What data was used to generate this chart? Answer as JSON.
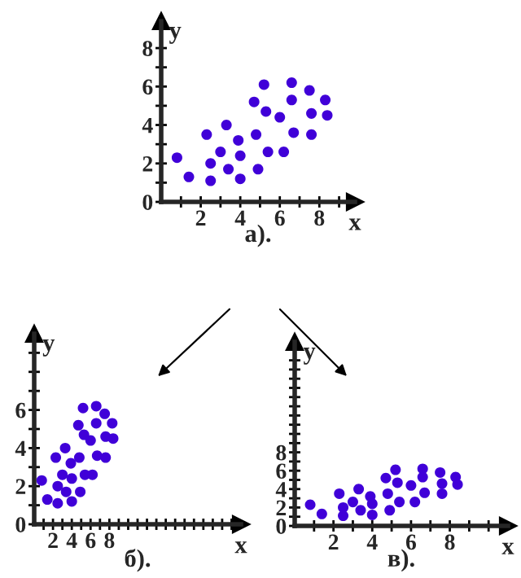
{
  "chart_data": [
    {
      "type": "scatter",
      "title": "а).",
      "xlabel": "x",
      "ylabel": "y",
      "color": "#4000d8",
      "marker": "circle",
      "grid": false,
      "x": [
        0.8,
        1.4,
        2.3,
        2.5,
        2.5,
        3.0,
        3.3,
        3.4,
        3.9,
        4.0,
        4.0,
        4.7,
        4.8,
        4.9,
        5.2,
        5.3,
        5.4,
        6.0,
        6.2,
        6.6,
        6.6,
        6.7,
        7.5,
        7.6,
        7.6,
        8.3,
        8.4
      ],
      "values": [
        2.3,
        1.3,
        3.5,
        2.0,
        1.1,
        2.6,
        4.0,
        1.7,
        3.2,
        2.4,
        1.2,
        5.2,
        3.5,
        1.7,
        6.1,
        4.7,
        2.6,
        4.4,
        2.6,
        6.2,
        5.3,
        3.6,
        5.8,
        4.6,
        3.5,
        5.3,
        4.5
      ],
      "xlim": [
        0,
        9.8
      ],
      "ylim": [
        0,
        9.4
      ],
      "xticks": [
        {
          "value": 1,
          "label": null
        },
        2,
        {
          "value": 3,
          "label": null
        },
        4,
        {
          "value": 5,
          "label": null
        },
        6,
        {
          "value": 7,
          "label": null
        },
        8,
        {
          "value": 9,
          "label": null
        }
      ],
      "yticks": [
        0,
        {
          "value": 1,
          "label": null
        },
        2,
        {
          "value": 3,
          "label": null
        },
        4,
        {
          "value": 5,
          "label": null
        },
        6,
        {
          "value": 7,
          "label": null
        },
        8
      ]
    },
    {
      "type": "scatter",
      "title": "б).",
      "xlabel": "x",
      "ylabel": "y",
      "color": "#4000d8",
      "marker": "circle",
      "grid": false,
      "x": [
        0.8,
        1.4,
        2.3,
        2.5,
        2.5,
        3.0,
        3.3,
        3.4,
        3.9,
        4.0,
        4.0,
        4.7,
        4.8,
        4.9,
        5.2,
        5.3,
        5.4,
        6.0,
        6.2,
        6.6,
        6.6,
        6.7,
        7.5,
        7.6,
        7.6,
        8.3,
        8.4
      ],
      "values": [
        2.3,
        1.3,
        3.5,
        2.0,
        1.1,
        2.6,
        4.0,
        1.7,
        3.2,
        2.4,
        1.2,
        5.2,
        3.5,
        1.7,
        6.1,
        4.7,
        2.6,
        4.4,
        2.6,
        6.2,
        5.3,
        3.6,
        5.8,
        4.6,
        3.5,
        5.3,
        4.5
      ],
      "xlim": [
        0,
        22
      ],
      "ylim": [
        0,
        10
      ],
      "xticks": [
        {
          "value": 1,
          "label": null
        },
        2,
        {
          "value": 3,
          "label": null
        },
        4,
        {
          "value": 5,
          "label": null
        },
        6,
        {
          "value": 7,
          "label": null
        },
        8,
        {
          "value": 9,
          "label": null
        },
        {
          "value": 10,
          "label": null
        },
        {
          "value": 11,
          "label": null
        },
        {
          "value": 12,
          "label": null
        },
        {
          "value": 13,
          "label": null
        },
        {
          "value": 14,
          "label": null
        },
        {
          "value": 15,
          "label": null
        },
        {
          "value": 16,
          "label": null
        },
        {
          "value": 17,
          "label": null
        },
        {
          "value": 18,
          "label": null
        },
        {
          "value": 19,
          "label": null
        },
        {
          "value": 20,
          "label": null
        },
        {
          "value": 21,
          "label": null
        }
      ],
      "yticks": [
        0,
        {
          "value": 1,
          "label": null
        },
        2,
        {
          "value": 3,
          "label": null
        },
        4,
        {
          "value": 5,
          "label": null
        },
        6,
        {
          "value": 7,
          "label": null
        },
        {
          "value": 8,
          "label": null
        },
        {
          "value": 9,
          "label": null
        }
      ]
    },
    {
      "type": "scatter",
      "title": "в).",
      "xlabel": "x",
      "ylabel": "y",
      "color": "#4000d8",
      "marker": "circle",
      "grid": false,
      "x": [
        0.8,
        1.4,
        2.3,
        2.5,
        2.5,
        3.0,
        3.3,
        3.4,
        3.9,
        4.0,
        4.0,
        4.7,
        4.8,
        4.9,
        5.2,
        5.3,
        5.4,
        6.0,
        6.2,
        6.6,
        6.6,
        6.7,
        7.5,
        7.6,
        7.6,
        8.3,
        8.4
      ],
      "values": [
        2.3,
        1.3,
        3.5,
        2.0,
        1.1,
        2.6,
        4.0,
        1.7,
        3.2,
        2.4,
        1.2,
        5.2,
        3.5,
        1.7,
        6.1,
        4.7,
        2.6,
        4.4,
        2.6,
        6.2,
        5.3,
        3.6,
        5.8,
        4.6,
        3.5,
        5.3,
        4.5
      ],
      "xlim": [
        0,
        11
      ],
      "ylim": [
        0,
        20
      ],
      "xticks": [
        {
          "value": 1,
          "label": null
        },
        2,
        {
          "value": 3,
          "label": null
        },
        4,
        {
          "value": 5,
          "label": null
        },
        6,
        {
          "value": 7,
          "label": null
        },
        8,
        {
          "value": 9,
          "label": null
        },
        {
          "value": 10,
          "label": null
        }
      ],
      "yticks": [
        0,
        {
          "value": 1,
          "label": null
        },
        2,
        {
          "value": 3,
          "label": null
        },
        4,
        {
          "value": 5,
          "label": null
        },
        6,
        {
          "value": 7,
          "label": null
        },
        8,
        {
          "value": 9,
          "label": null
        },
        {
          "value": 10,
          "label": null
        },
        {
          "value": 11,
          "label": null
        },
        {
          "value": 12,
          "label": null
        },
        {
          "value": 13,
          "label": null
        },
        {
          "value": 14,
          "label": null
        },
        {
          "value": 15,
          "label": null
        },
        {
          "value": 16,
          "label": null
        },
        {
          "value": 17,
          "label": null
        },
        {
          "value": 18,
          "label": null
        }
      ]
    }
  ]
}
